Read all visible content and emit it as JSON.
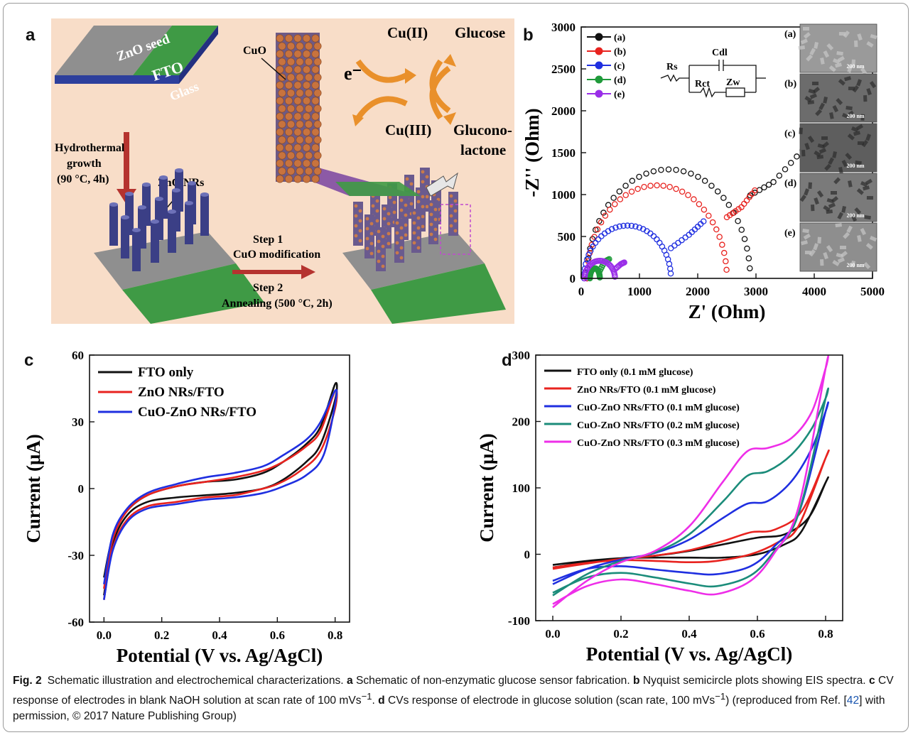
{
  "panel_letters": {
    "a": "a",
    "b": "b",
    "c": "c",
    "d": "d"
  },
  "schematic": {
    "zno_seed": "ZnO seed",
    "fto": "FTO",
    "glass": "Glass",
    "hydrothermal_1": "Hydrothermal",
    "hydrothermal_2": "growth",
    "hydrothermal_3": "(90 °C, 4h)",
    "zno_nrs": "ZnO NRs",
    "step1_1": "Step 1",
    "step1_2": "CuO modification",
    "step2_1": "Step 2",
    "step2_2": "Annealing  (500 °C, 2h)",
    "cuo": "CuO",
    "electron": "e⁻",
    "cu2": "Cu(II)",
    "cu3": "Cu(III)",
    "glucose": "Glucose",
    "gluconolactone_1": "Glucono-",
    "gluconolactone_2": "lactone",
    "colors": {
      "background": "#f8ddc8",
      "fto_green": "#3f9a45",
      "glass_blue": "#2d3f9c",
      "rod": "#3b3f86",
      "arrow_orange": "#e9902b",
      "arrow_red": "#b5332f"
    }
  },
  "circuit": {
    "rs": "Rs",
    "cdl": "Cdl",
    "rct": "Rct",
    "zw": "Zw"
  },
  "sem": {
    "labels": [
      "(a)",
      "(b)",
      "(c)",
      "(d)",
      "(e)"
    ],
    "scale": "200 nm"
  },
  "chart_data": [
    {
      "panel": "b",
      "type": "scatter",
      "xlabel": "Z' (Ohm)",
      "ylabel": "-Z'' (Ohm)",
      "xlim": [
        0,
        5000
      ],
      "ylim": [
        0,
        3000
      ],
      "xticks": [
        "0",
        "1000",
        "2000",
        "3000",
        "4000",
        "5000"
      ],
      "yticks": [
        "0",
        "500",
        "1000",
        "1500",
        "2000",
        "2500",
        "3000"
      ],
      "legend_position": "top-left",
      "series": [
        {
          "name": "(a)",
          "color": "#111111",
          "semicircle": {
            "r0": 100,
            "r1": 2900,
            "peak": 1300
          },
          "tail": [
            [
              2900,
              990
            ],
            [
              3300,
              1150
            ],
            [
              3800,
              1530
            ]
          ]
        },
        {
          "name": "(b)",
          "color": "#e8231f",
          "semicircle": {
            "r0": 100,
            "r1": 2500,
            "peak": 1110
          },
          "tail": [
            [
              2500,
              730
            ],
            [
              2750,
              850
            ],
            [
              2980,
              1050
            ]
          ]
        },
        {
          "name": "(c)",
          "color": "#1f2fe0",
          "semicircle": {
            "r0": 50,
            "r1": 1540,
            "peak": 630
          },
          "tail": [
            [
              1540,
              360
            ],
            [
              1850,
              520
            ],
            [
              2100,
              680
            ]
          ]
        },
        {
          "name": "(d)",
          "color": "#1f9a3a",
          "semicircle": {
            "r0": 150,
            "r1": 320,
            "peak": 120
          },
          "tail": [
            [
              320,
              90
            ],
            [
              400,
              200
            ],
            [
              480,
              230
            ]
          ]
        },
        {
          "name": "(e)",
          "color": "#9a2ee8",
          "semicircle": {
            "r0": 60,
            "r1": 580,
            "peak": 210
          },
          "tail": [
            [
              580,
              110
            ],
            [
              680,
              170
            ],
            [
              740,
              190
            ]
          ]
        }
      ]
    },
    {
      "panel": "c",
      "type": "line",
      "xlabel": "Potential (V vs. Ag/AgCl)",
      "ylabel": "Current (μA)",
      "xlim": [
        -0.05,
        0.85
      ],
      "ylim": [
        -60,
        60
      ],
      "xticks": [
        "0.0",
        "0.2",
        "0.4",
        "0.6",
        "0.8"
      ],
      "yticks": [
        "-60",
        "-30",
        "0",
        "30",
        "60"
      ],
      "legend_position": "top-left",
      "series": [
        {
          "name": "FTO only",
          "color": "#111111",
          "forward": [
            [
              0.0,
              -48
            ],
            [
              0.03,
              -25
            ],
            [
              0.08,
              -12
            ],
            [
              0.15,
              -6
            ],
            [
              0.25,
              -4
            ],
            [
              0.35,
              -3
            ],
            [
              0.45,
              -2
            ],
            [
              0.55,
              0
            ],
            [
              0.62,
              4
            ],
            [
              0.7,
              12
            ],
            [
              0.75,
              20
            ],
            [
              0.8,
              40
            ]
          ],
          "reverse": [
            [
              0.8,
              47
            ],
            [
              0.75,
              28
            ],
            [
              0.7,
              20
            ],
            [
              0.62,
              12
            ],
            [
              0.55,
              7
            ],
            [
              0.45,
              4
            ],
            [
              0.35,
              3
            ],
            [
              0.25,
              1
            ],
            [
              0.15,
              -3
            ],
            [
              0.08,
              -10
            ],
            [
              0.03,
              -22
            ],
            [
              0.0,
              -40
            ]
          ]
        },
        {
          "name": "ZnO NRs/FTO",
          "color": "#e8231f",
          "forward": [
            [
              0.0,
              -50
            ],
            [
              0.03,
              -27
            ],
            [
              0.08,
              -14
            ],
            [
              0.15,
              -8
            ],
            [
              0.25,
              -6
            ],
            [
              0.35,
              -4
            ],
            [
              0.45,
              -3
            ],
            [
              0.52,
              -1
            ],
            [
              0.6,
              2
            ],
            [
              0.68,
              8
            ],
            [
              0.75,
              17
            ],
            [
              0.8,
              36
            ]
          ],
          "reverse": [
            [
              0.8,
              44
            ],
            [
              0.75,
              26
            ],
            [
              0.7,
              19
            ],
            [
              0.62,
              12
            ],
            [
              0.55,
              8
            ],
            [
              0.45,
              5
            ],
            [
              0.35,
              3
            ],
            [
              0.25,
              1
            ],
            [
              0.15,
              -3
            ],
            [
              0.08,
              -10
            ],
            [
              0.03,
              -23
            ],
            [
              0.0,
              -45
            ]
          ]
        },
        {
          "name": "CuO-ZnO NRs/FTO",
          "color": "#1f2fe0",
          "forward": [
            [
              0.0,
              -50
            ],
            [
              0.03,
              -28
            ],
            [
              0.08,
              -15
            ],
            [
              0.15,
              -9
            ],
            [
              0.25,
              -7
            ],
            [
              0.35,
              -5
            ],
            [
              0.45,
              -4
            ],
            [
              0.55,
              -2
            ],
            [
              0.62,
              1
            ],
            [
              0.7,
              6
            ],
            [
              0.76,
              15
            ],
            [
              0.8,
              38
            ]
          ],
          "reverse": [
            [
              0.8,
              44
            ],
            [
              0.75,
              30
            ],
            [
              0.7,
              22
            ],
            [
              0.62,
              15
            ],
            [
              0.55,
              10
            ],
            [
              0.45,
              7
            ],
            [
              0.35,
              5
            ],
            [
              0.25,
              2
            ],
            [
              0.15,
              -2
            ],
            [
              0.08,
              -9
            ],
            [
              0.03,
              -21
            ],
            [
              0.0,
              -43
            ]
          ]
        }
      ]
    },
    {
      "panel": "d",
      "type": "line",
      "xlabel": "Potential (V vs. Ag/AgCl)",
      "ylabel": "Current (μA)",
      "xlim": [
        -0.05,
        0.85
      ],
      "ylim": [
        -100,
        300
      ],
      "xticks": [
        "0.0",
        "0.2",
        "0.4",
        "0.6",
        "0.8"
      ],
      "yticks": [
        "-100",
        "0",
        "100",
        "200",
        "300"
      ],
      "legend_position": "top-left",
      "series": [
        {
          "name": "FTO only (0.1 mM glucose)",
          "color": "#111111",
          "forward": [
            [
              0.0,
              -20
            ],
            [
              0.1,
              -12
            ],
            [
              0.2,
              -6
            ],
            [
              0.3,
              -2
            ],
            [
              0.4,
              5
            ],
            [
              0.5,
              15
            ],
            [
              0.6,
              25
            ],
            [
              0.68,
              30
            ],
            [
              0.75,
              55
            ],
            [
              0.8,
              108
            ]
          ],
          "reverse": [
            [
              0.8,
              108
            ],
            [
              0.73,
              35
            ],
            [
              0.68,
              15
            ],
            [
              0.6,
              0
            ],
            [
              0.5,
              -5
            ],
            [
              0.4,
              -5
            ],
            [
              0.3,
              -5
            ],
            [
              0.2,
              -6
            ],
            [
              0.1,
              -10
            ],
            [
              0.0,
              -16
            ]
          ]
        },
        {
          "name": "ZnO NRs/FTO (0.1 mM glucose)",
          "color": "#e8231f",
          "forward": [
            [
              0.0,
              -22
            ],
            [
              0.1,
              -14
            ],
            [
              0.2,
              -7
            ],
            [
              0.3,
              -2
            ],
            [
              0.4,
              6
            ],
            [
              0.5,
              20
            ],
            [
              0.58,
              33
            ],
            [
              0.65,
              37
            ],
            [
              0.73,
              65
            ],
            [
              0.8,
              145
            ]
          ],
          "reverse": [
            [
              0.8,
              145
            ],
            [
              0.72,
              42
            ],
            [
              0.66,
              18
            ],
            [
              0.58,
              0
            ],
            [
              0.48,
              -10
            ],
            [
              0.4,
              -12
            ],
            [
              0.3,
              -10
            ],
            [
              0.2,
              -9
            ],
            [
              0.1,
              -13
            ],
            [
              0.0,
              -20
            ]
          ]
        },
        {
          "name": "CuO-ZnO NRs/FTO (0.1 mM glucose)",
          "color": "#1f2fe0",
          "forward": [
            [
              0.0,
              -45
            ],
            [
              0.1,
              -22
            ],
            [
              0.2,
              -8
            ],
            [
              0.3,
              2
            ],
            [
              0.4,
              22
            ],
            [
              0.5,
              55
            ],
            [
              0.57,
              76
            ],
            [
              0.63,
              80
            ],
            [
              0.7,
              110
            ],
            [
              0.76,
              160
            ],
            [
              0.8,
              215
            ]
          ],
          "reverse": [
            [
              0.8,
              215
            ],
            [
              0.72,
              60
            ],
            [
              0.65,
              12
            ],
            [
              0.58,
              -18
            ],
            [
              0.48,
              -30
            ],
            [
              0.4,
              -28
            ],
            [
              0.3,
              -23
            ],
            [
              0.2,
              -18
            ],
            [
              0.1,
              -22
            ],
            [
              0.0,
              -40
            ]
          ]
        },
        {
          "name": "CuO-ZnO NRs/FTO (0.2 mM glucose)",
          "color": "#1b8c7a",
          "forward": [
            [
              0.0,
              -62
            ],
            [
              0.1,
              -30
            ],
            [
              0.2,
              -10
            ],
            [
              0.3,
              3
            ],
            [
              0.4,
              30
            ],
            [
              0.5,
              80
            ],
            [
              0.57,
              118
            ],
            [
              0.63,
              125
            ],
            [
              0.7,
              150
            ],
            [
              0.76,
              190
            ],
            [
              0.8,
              235
            ]
          ],
          "reverse": [
            [
              0.8,
              235
            ],
            [
              0.72,
              60
            ],
            [
              0.65,
              5
            ],
            [
              0.58,
              -32
            ],
            [
              0.48,
              -48
            ],
            [
              0.4,
              -44
            ],
            [
              0.3,
              -35
            ],
            [
              0.2,
              -28
            ],
            [
              0.1,
              -35
            ],
            [
              0.0,
              -58
            ]
          ]
        },
        {
          "name": "CuO-ZnO NRs/FTO (0.3 mM glucose)",
          "color": "#ee2ee8",
          "forward": [
            [
              0.0,
              -80
            ],
            [
              0.1,
              -40
            ],
            [
              0.2,
              -12
            ],
            [
              0.3,
              5
            ],
            [
              0.4,
              42
            ],
            [
              0.5,
              110
            ],
            [
              0.57,
              155
            ],
            [
              0.63,
              160
            ],
            [
              0.7,
              175
            ],
            [
              0.76,
              215
            ],
            [
              0.8,
              280
            ]
          ],
          "reverse": [
            [
              0.8,
              280
            ],
            [
              0.72,
              70
            ],
            [
              0.65,
              2
            ],
            [
              0.58,
              -40
            ],
            [
              0.48,
              -60
            ],
            [
              0.4,
              -55
            ],
            [
              0.3,
              -45
            ],
            [
              0.2,
              -38
            ],
            [
              0.1,
              -48
            ],
            [
              0.0,
              -75
            ]
          ]
        }
      ]
    }
  ],
  "caption": {
    "lead": "Fig. 2",
    "text1": "Schematic illustration and electrochemical characterizations. ",
    "a": "a",
    "text2": " Schematic of non-enzymatic glucose sensor fabrication. ",
    "b": "b",
    "text3": " Nyquist semicircle plots showing EIS spectra. ",
    "c": "c",
    "text4": " CV response of electrodes in blank NaOH solution at scan rate of 100 mVs",
    "sup1": "−1",
    "text5": ". ",
    "d": "d",
    "text6": " CVs response of electrode in glucose solution (scan rate, 100 mVs",
    "sup2": "−1",
    "text7": ") (reproduced from Ref. [",
    "ref": "42",
    "text8": "] with permission, © 2017 Nature Publishing Group)"
  }
}
